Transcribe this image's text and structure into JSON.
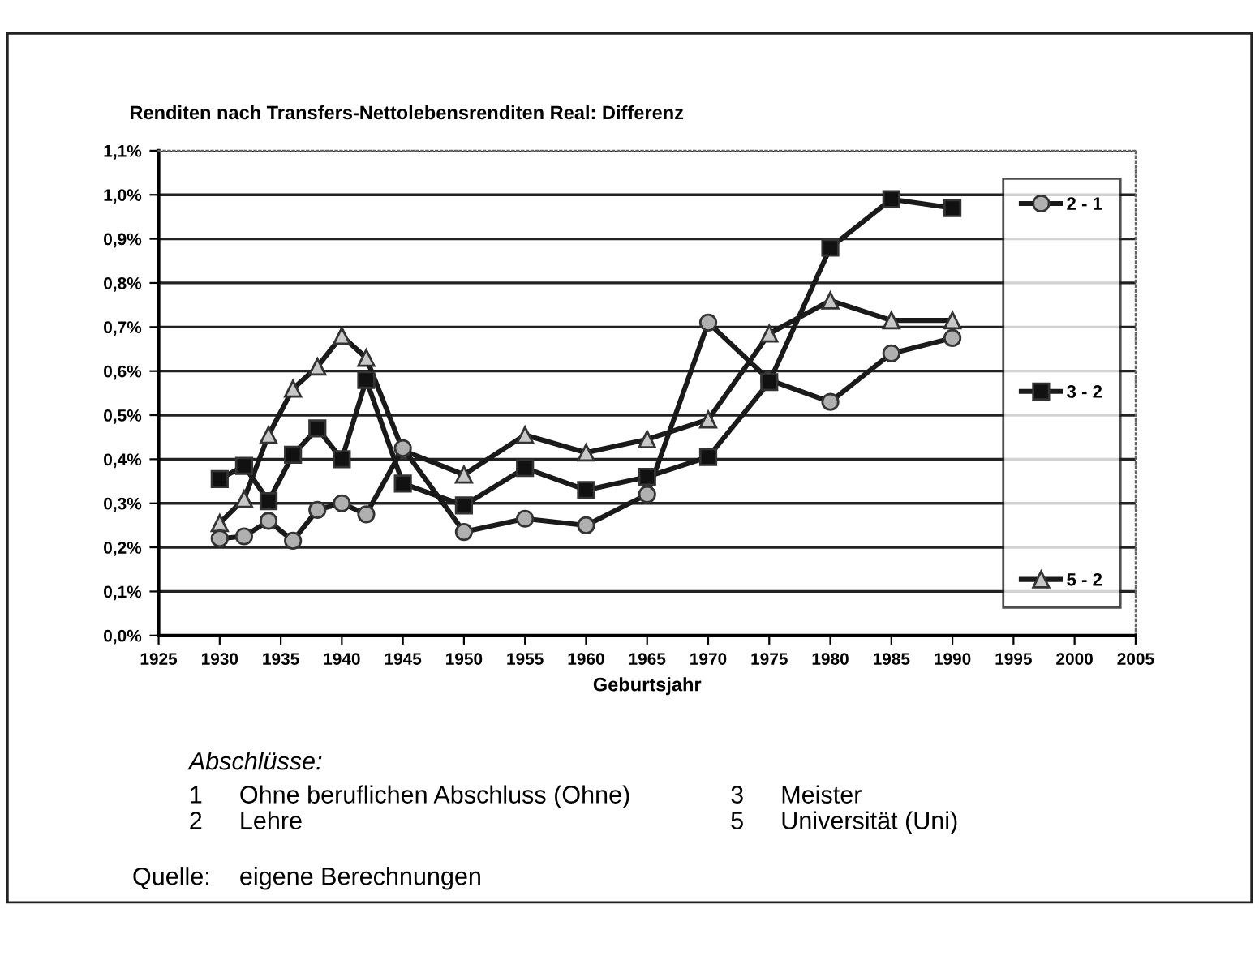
{
  "chart_data": {
    "type": "line",
    "title": "Renditen nach Transfers-Nettolebensrenditen Real: Differenz",
    "xlabel": "Geburtsjahr",
    "x": [
      1930,
      1932,
      1934,
      1936,
      1938,
      1940,
      1942,
      1945,
      1950,
      1955,
      1960,
      1965,
      1970,
      1975,
      1980,
      1985,
      1990
    ],
    "series": [
      {
        "name": "2 - 1",
        "color": "#1a1a1a",
        "marker": "circle",
        "values": [
          0.22,
          0.225,
          0.26,
          0.215,
          0.285,
          0.3,
          0.275,
          0.425,
          0.235,
          0.265,
          0.25,
          0.32,
          0.71,
          0.58,
          0.53,
          0.64,
          0.675
        ]
      },
      {
        "name": "3 - 2",
        "color": "#1a1a1a",
        "marker": "square",
        "values": [
          0.355,
          0.385,
          0.305,
          0.41,
          0.47,
          0.4,
          0.58,
          0.345,
          0.295,
          0.38,
          0.33,
          0.36,
          0.405,
          0.575,
          0.88,
          0.99,
          0.97
        ]
      },
      {
        "name": "5 - 2",
        "color": "#1a1a1a",
        "marker": "triangle",
        "values": [
          0.255,
          0.31,
          0.455,
          0.56,
          0.61,
          0.68,
          0.63,
          0.42,
          0.365,
          0.455,
          0.415,
          0.445,
          0.49,
          0.685,
          0.76,
          0.715,
          0.715
        ]
      }
    ],
    "xlim": [
      1925,
      2005
    ],
    "xticks": [
      1925,
      1930,
      1935,
      1940,
      1945,
      1950,
      1955,
      1960,
      1965,
      1970,
      1975,
      1980,
      1985,
      1990,
      1995,
      2000,
      2005
    ],
    "ylim": [
      0,
      1.1
    ],
    "yticks": [
      {
        "value": 0,
        "label": "0,0%"
      },
      {
        "value": 0.1,
        "label": "0,1%"
      },
      {
        "value": 0.2,
        "label": "0,2%"
      },
      {
        "value": 0.3,
        "label": "0,3%"
      },
      {
        "value": 0.4,
        "label": "0,4%"
      },
      {
        "value": 0.5,
        "label": "0,5%"
      },
      {
        "value": 0.6,
        "label": "0,6%"
      },
      {
        "value": 0.7,
        "label": "0,7%"
      },
      {
        "value": 0.8,
        "label": "0,8%"
      },
      {
        "value": 0.9,
        "label": "0,9%"
      },
      {
        "value": 1.0,
        "label": "1,0%"
      },
      {
        "value": 1.1,
        "label": "1,1%"
      }
    ],
    "grid": "y",
    "legend": "right",
    "line_style": "solid",
    "annotations": [
      "Abschlüsse:",
      "1",
      "Ohne beruflichen Abschluss (Ohne)",
      "3",
      "Meister",
      "2",
      "Lehre",
      "5",
      "Universität (Uni)",
      "Quelle:",
      "eigene Berechnungen"
    ]
  }
}
